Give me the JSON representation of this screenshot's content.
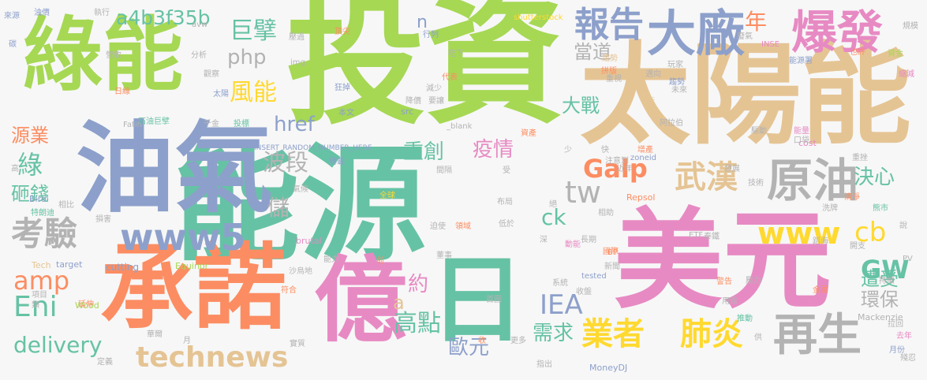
{
  "words": [
    {
      "text": "投資",
      "color": "#a6d854"
    },
    {
      "text": "能源",
      "color": "#66c2a5"
    },
    {
      "text": "太陽能",
      "color": "#e5c494"
    },
    {
      "text": "油氣",
      "color": "#8da0cb"
    },
    {
      "text": "美元",
      "color": "#e78ac3"
    },
    {
      "text": "綠能",
      "color": "#a6d854"
    },
    {
      "text": "承諾",
      "color": "#fc8d62"
    },
    {
      "text": "億",
      "color": "#e78ac3"
    },
    {
      "text": "日",
      "color": "#66c2a5"
    },
    {
      "text": "原油",
      "color": "#b3b3b3"
    },
    {
      "text": "大廠",
      "color": "#8da0cb"
    },
    {
      "text": "爆發",
      "color": "#e78ac3"
    },
    {
      "text": "報告",
      "color": "#8da0cb"
    },
    {
      "text": "technews",
      "color": "#e5c494"
    },
    {
      "text": "再生",
      "color": "#b3b3b3"
    },
    {
      "text": "考驗",
      "color": "#b3b3b3"
    },
    {
      "text": "www5",
      "color": "#8da0cb"
    },
    {
      "text": "www",
      "color": "#ffd92f"
    },
    {
      "text": "業者",
      "color": "#ffd92f"
    },
    {
      "text": "肺炎",
      "color": "#ffd92f"
    },
    {
      "text": "武漢",
      "color": "#e5c494"
    },
    {
      "text": "a4b3f35b",
      "color": "#66c2a5"
    },
    {
      "text": "php",
      "color": "#b3b3b3"
    },
    {
      "text": "波段",
      "color": "#b3b3b3"
    },
    {
      "text": "delivery",
      "color": "#66c2a5"
    },
    {
      "text": "Galp",
      "color": "#fc8d62"
    },
    {
      "text": "IEA",
      "color": "#8da0cb"
    },
    {
      "text": "cb",
      "color": "#ffd92f"
    },
    {
      "text": "GW",
      "color": "#66c2a5"
    },
    {
      "text": "amp",
      "color": "#fc8d62"
    },
    {
      "text": "Eni",
      "color": "#66c2a5"
    },
    {
      "text": "tw",
      "color": "#b3b3b3"
    },
    {
      "text": "巨擘",
      "color": "#66c2a5"
    },
    {
      "text": "風能",
      "color": "#ffd92f"
    },
    {
      "text": "高點",
      "color": "#66c2a5"
    },
    {
      "text": "歐元",
      "color": "#8da0cb"
    },
    {
      "text": "疫情",
      "color": "#e78ac3"
    },
    {
      "text": "重創",
      "color": "#66c2a5"
    },
    {
      "text": "大戰",
      "color": "#66c2a5"
    },
    {
      "text": "決心",
      "color": "#66c2a5"
    },
    {
      "text": "遭受",
      "color": "#66c2a5"
    },
    {
      "text": "環保",
      "color": "#b3b3b3"
    },
    {
      "text": "需求",
      "color": "#66c2a5"
    },
    {
      "text": "href",
      "color": "#8da0cb"
    },
    {
      "text": "綠",
      "color": "#66c2a5"
    },
    {
      "text": "源業",
      "color": "#fc8d62"
    },
    {
      "text": "砸錢",
      "color": "#66c2a5"
    },
    {
      "text": "儲",
      "color": "#b3b3b3"
    },
    {
      "text": "ck",
      "color": "#66c2a5"
    },
    {
      "text": "約",
      "color": "#e78ac3"
    },
    {
      "text": "a",
      "color": "#e5c494"
    },
    {
      "text": "年",
      "color": "#fc8d62"
    },
    {
      "text": "當道",
      "color": "#b3b3b3"
    },
    {
      "text": "n",
      "color": "#8da0cb"
    },
    {
      "text": "INSERT_RANDOM_NUMBER_HERE",
      "color": "#8da0cb"
    },
    {
      "text": "shutterstock",
      "color": "#ffd92f"
    },
    {
      "text": "Repsol",
      "color": "#fc8d62"
    },
    {
      "text": "Equinor",
      "color": "#a6d854"
    },
    {
      "text": "Mackenzie",
      "color": "#b3b3b3"
    },
    {
      "text": "MoneyDJ",
      "color": "#8da0cb"
    },
    {
      "text": "Fatih",
      "color": "#b3b3b3"
    },
    {
      "text": "Birol",
      "color": "#8da0cb"
    },
    {
      "text": "Wood",
      "color": "#a6d854"
    },
    {
      "text": "cutting",
      "color": "#8da0cb"
    },
    {
      "text": "brutal",
      "color": "#e78ac3"
    },
    {
      "text": "target",
      "color": "#8da0cb"
    },
    {
      "text": "Tech",
      "color": "#e5c494"
    },
    {
      "text": "tested",
      "color": "#8da0cb"
    },
    {
      "text": "cost",
      "color": "#e78ac3"
    },
    {
      "text": "zoneid",
      "color": "#8da0cb"
    },
    {
      "text": "src",
      "color": "#8da0cb"
    },
    {
      "text": "_blank",
      "color": "#b3b3b3"
    },
    {
      "text": "img",
      "color": "#b3b3b3"
    },
    {
      "text": "avw",
      "color": "#b3b3b3"
    },
    {
      "text": "INSE",
      "color": "#e78ac3"
    },
    {
      "text": "ETF",
      "color": "#b3b3b3"
    },
    {
      "text": "BP",
      "color": "#fc8d62"
    },
    {
      "text": "PV",
      "color": "#b3b3b3"
    },
    {
      "text": "油價",
      "color": "#8da0cb"
    },
    {
      "text": "執行",
      "color": "#b3b3b3"
    },
    {
      "text": "來源",
      "color": "#8da0cb"
    },
    {
      "text": "碳",
      "color": "#8da0cb"
    },
    {
      "text": "營收",
      "color": "#b3b3b3"
    },
    {
      "text": "分析",
      "color": "#b3b3b3"
    },
    {
      "text": "壓過",
      "color": "#b3b3b3"
    },
    {
      "text": "頂尖",
      "color": "#fc8d62"
    },
    {
      "text": "行列",
      "color": "#8da0cb"
    },
    {
      "text": "吃下",
      "color": "#b3b3b3"
    },
    {
      "text": "趨勢",
      "color": "#e5c494"
    },
    {
      "text": "玩家",
      "color": "#b3b3b3"
    },
    {
      "text": "能源署",
      "color": "#8da0cb"
    },
    {
      "text": "也許",
      "color": "#fc8d62"
    },
    {
      "text": "資金",
      "color": "#a6d854"
    },
    {
      "text": "規模",
      "color": "#b3b3b3"
    },
    {
      "text": "廢氣",
      "color": "#b3b3b3"
    },
    {
      "text": "縮減",
      "color": "#e78ac3"
    },
    {
      "text": "觀察",
      "color": "#b3b3b3"
    },
    {
      "text": "太陽",
      "color": "#8da0cb"
    },
    {
      "text": "重視",
      "color": "#b3b3b3"
    },
    {
      "text": "拼版",
      "color": "#fc8d62"
    },
    {
      "text": "邁向",
      "color": "#b3b3b3"
    },
    {
      "text": "趨勢",
      "color": "#8da0cb"
    },
    {
      "text": "代表",
      "color": "#fc8d62"
    },
    {
      "text": "減少",
      "color": "#b3b3b3"
    },
    {
      "text": "狂掉",
      "color": "#8da0cb"
    },
    {
      "text": "未來",
      "color": "#b3b3b3"
    },
    {
      "text": "近",
      "color": "#e5c494"
    },
    {
      "text": "日線",
      "color": "#fc8d62"
    },
    {
      "text": "本文",
      "color": "#8da0cb"
    },
    {
      "text": "降價",
      "color": "#b3b3b3"
    },
    {
      "text": "要讓",
      "color": "#b3b3b3"
    },
    {
      "text": "石油巨擘",
      "color": "#66c2a5"
    },
    {
      "text": "千金",
      "color": "#b3b3b3"
    },
    {
      "text": "投標",
      "color": "#66c2a5"
    },
    {
      "text": "阿拉伯",
      "color": "#b3b3b3"
    },
    {
      "text": "能量",
      "color": "#e78ac3"
    },
    {
      "text": "口袋",
      "color": "#b3b3b3"
    },
    {
      "text": "驅動",
      "color": "#b3b3b3"
    },
    {
      "text": "資產",
      "color": "#fc8d62"
    },
    {
      "text": "少",
      "color": "#b3b3b3"
    },
    {
      "text": "快",
      "color": "#b3b3b3"
    },
    {
      "text": "增產",
      "color": "#fc8d62"
    },
    {
      "text": "注意到",
      "color": "#b3b3b3"
    },
    {
      "text": "近年",
      "color": "#b3b3b3"
    },
    {
      "text": "發展",
      "color": "#b3b3b3"
    },
    {
      "text": "技術",
      "color": "#b3b3b3"
    },
    {
      "text": "清淨",
      "color": "#fc8d62"
    },
    {
      "text": "重挫",
      "color": "#b3b3b3"
    },
    {
      "text": "全球",
      "color": "#ffd92f"
    },
    {
      "text": "轉載",
      "color": "#8da0cb"
    },
    {
      "text": "氣候",
      "color": "#b3b3b3"
    },
    {
      "text": "間隔",
      "color": "#b3b3b3"
    },
    {
      "text": "受",
      "color": "#b3b3b3"
    },
    {
      "text": "相比",
      "color": "#b3b3b3"
    },
    {
      "text": "特朗迪",
      "color": "#66c2a5"
    },
    {
      "text": "損害",
      "color": "#b3b3b3"
    },
    {
      "text": "領域",
      "color": "#fc8d62"
    },
    {
      "text": "迫使",
      "color": "#b3b3b3"
    },
    {
      "text": "沙烏地",
      "color": "#b3b3b3"
    },
    {
      "text": "符合",
      "color": "#fc8d62"
    },
    {
      "text": "布局",
      "color": "#b3b3b3"
    },
    {
      "text": "低於",
      "color": "#b3b3b3"
    },
    {
      "text": "深",
      "color": "#b3b3b3"
    },
    {
      "text": "長期",
      "color": "#b3b3b3"
    },
    {
      "text": "泰鐵",
      "color": "#b3b3b3"
    },
    {
      "text": "洗牌",
      "color": "#b3b3b3"
    },
    {
      "text": "熊市",
      "color": "#66c2a5"
    },
    {
      "text": "開支",
      "color": "#b3b3b3"
    },
    {
      "text": "說",
      "color": "#b3b3b3"
    },
    {
      "text": "絕",
      "color": "#b3b3b3"
    },
    {
      "text": "相助",
      "color": "#b3b3b3"
    },
    {
      "text": "蹈海",
      "color": "#b3b3b3"
    },
    {
      "text": "動能",
      "color": "#e78ac3"
    },
    {
      "text": "國際",
      "color": "#fc8d62"
    },
    {
      "text": "新聞",
      "color": "#b3b3b3"
    },
    {
      "text": "警告",
      "color": "#fc8d62"
    },
    {
      "text": "系統",
      "color": "#b3b3b3"
    },
    {
      "text": "首圖",
      "color": "#b3b3b3"
    },
    {
      "text": "前",
      "color": "#fc8d62"
    },
    {
      "text": "董事",
      "color": "#b3b3b3"
    },
    {
      "text": "能力",
      "color": "#b3b3b3"
    },
    {
      "text": "收盤",
      "color": "#b3b3b3"
    },
    {
      "text": "壓力",
      "color": "#b3b3b3"
    },
    {
      "text": "用電",
      "color": "#b3b3b3"
    },
    {
      "text": "金屬",
      "color": "#fc8d62"
    },
    {
      "text": "持續",
      "color": "#b3b3b3"
    },
    {
      "text": "拉回",
      "color": "#b3b3b3"
    },
    {
      "text": "去年",
      "color": "#e78ac3"
    },
    {
      "text": "月份",
      "color": "#8da0cb"
    },
    {
      "text": "殘忍",
      "color": "#b3b3b3"
    },
    {
      "text": "供",
      "color": "#b3b3b3"
    },
    {
      "text": "推動",
      "color": "#66c2a5"
    },
    {
      "text": "收",
      "color": "#fc8d62"
    },
    {
      "text": "更多",
      "color": "#b3b3b3"
    },
    {
      "text": "指出",
      "color": "#b3b3b3"
    },
    {
      "text": "實質",
      "color": "#b3b3b3"
    },
    {
      "text": "定義",
      "color": "#b3b3b3"
    },
    {
      "text": "華爾",
      "color": "#b3b3b3"
    },
    {
      "text": "延伸",
      "color": "#fc8d62"
    },
    {
      "text": "項目",
      "color": "#b3b3b3"
    },
    {
      "text": "類",
      "color": "#b3b3b3"
    },
    {
      "text": "月",
      "color": "#b3b3b3"
    },
    {
      "text": "高",
      "color": "#b3b3b3"
    }
  ]
}
